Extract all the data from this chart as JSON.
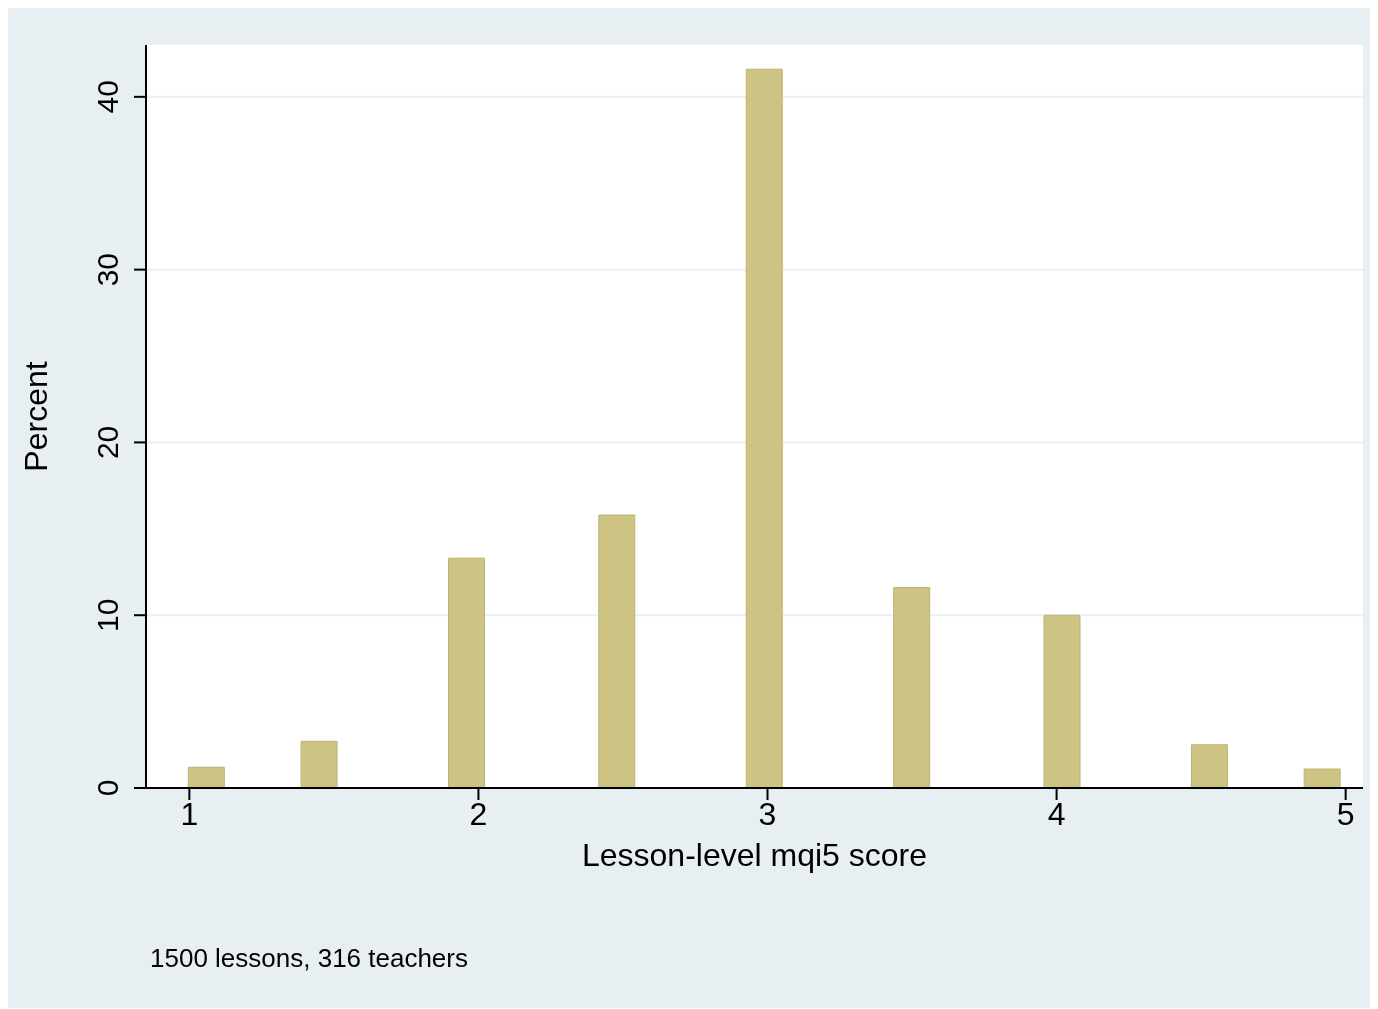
{
  "chart_data": {
    "type": "bar",
    "xlabel": "Lesson-level mqi5 score",
    "ylabel": "Percent",
    "x": [
      1.06,
      1.45,
      1.96,
      2.48,
      2.99,
      3.5,
      4.02,
      4.53,
      4.92
    ],
    "values": [
      1.2,
      2.7,
      13.3,
      15.8,
      41.6,
      11.6,
      10,
      2.5,
      1.1
    ],
    "color": "#cdc383",
    "xlim": [
      0.85,
      5.06
    ],
    "xticks": [
      1,
      2,
      3,
      4,
      5
    ],
    "ylim": [
      0,
      43
    ],
    "yticks": [
      0,
      10,
      20,
      30,
      40
    ],
    "grid": "y",
    "annotations": [
      "1500 lessons, 316 teachers"
    ]
  }
}
